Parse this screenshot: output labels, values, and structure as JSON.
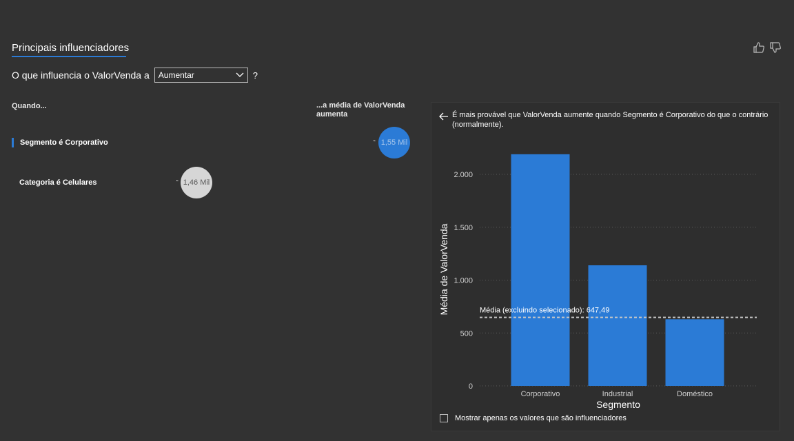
{
  "header": {
    "tab_title": "Principais influenciadores"
  },
  "question": {
    "prefix": "O que influencia o ValorVenda a",
    "dropdown_value": "Aumentar",
    "help": "?"
  },
  "columns": {
    "when": "Quando...",
    "avg": "...a média de ValorVenda aumenta"
  },
  "influencers": [
    {
      "label": "Segmento é Corporativo",
      "value_label": "1,55 Mil",
      "value": 1550,
      "selected": true
    },
    {
      "label": "Categoria é Celulares",
      "value_label": "1,46 Mil",
      "value": 1460,
      "selected": false
    }
  ],
  "detail": {
    "description": "É mais provável que ValorVenda aumente quando Segmento é Corporativo do que o contrário (normalmente).",
    "checkbox_label": "Mostrar apenas os valores que são influenciadores",
    "checkbox_checked": false
  },
  "colors": {
    "accent": "#2b7bd6",
    "bar": "#2b7bd6",
    "bubble_unselected": "#d6d6d6",
    "average_line": "#c8c8c8"
  },
  "chart_data": {
    "type": "bar",
    "categories": [
      "Corporativo",
      "Industrial",
      "Doméstico"
    ],
    "values": [
      2190,
      1140,
      630
    ],
    "xlabel": "Segmento",
    "ylabel": "Média de ValorVenda",
    "ylim": [
      0,
      2000
    ],
    "yticks": [
      0,
      500,
      1000,
      1500,
      2000
    ],
    "ytick_labels": [
      "0",
      "500",
      "1.000",
      "1.500",
      "2.000"
    ],
    "reference_line": {
      "value": 647.49,
      "label": "Média (excluindo selecionado): 647,49"
    },
    "grid": true
  }
}
